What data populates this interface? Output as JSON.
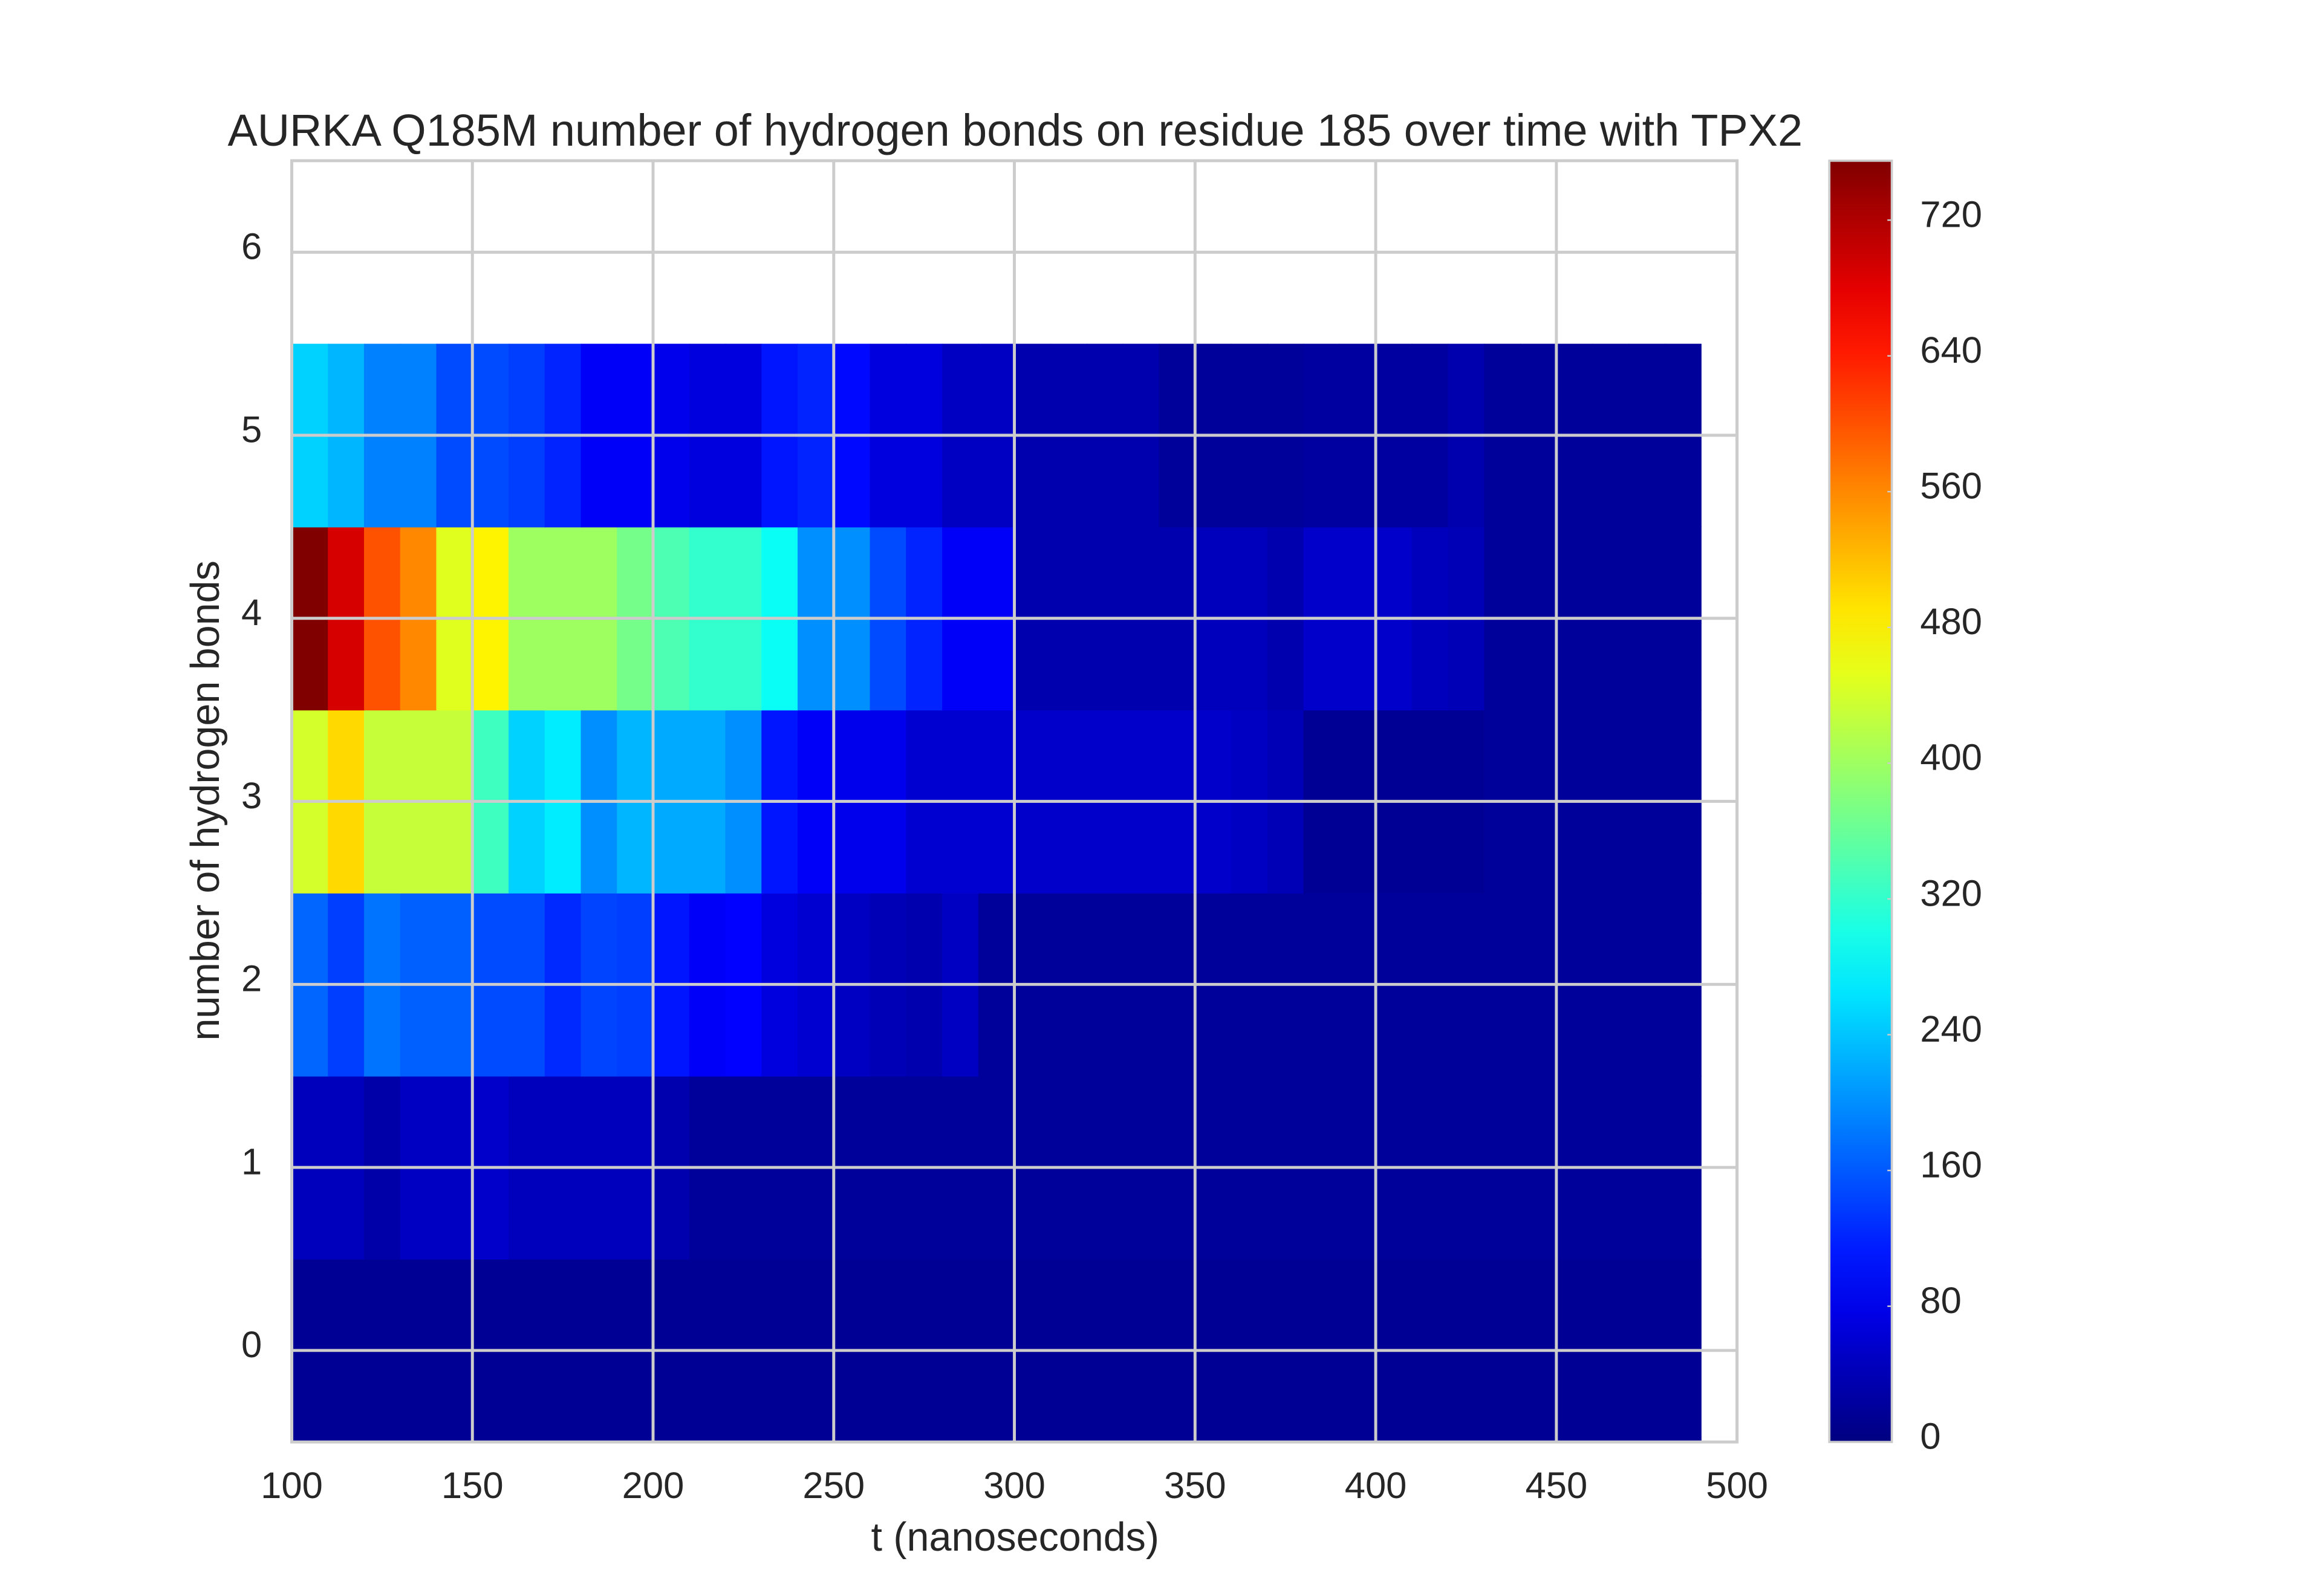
{
  "chart_data": {
    "type": "histogram2d",
    "title": "AURKA Q185M number of hydrogen bonds on residue 185 over time with TPX2",
    "xlabel": "t (nanoseconds)",
    "ylabel": "number of hydrogen bonds",
    "xbins": [
      100,
      110,
      120,
      130,
      140,
      150,
      160,
      170,
      180,
      190,
      200,
      210,
      220,
      230,
      240,
      250,
      260,
      270,
      280,
      290,
      300,
      310,
      320,
      330,
      340,
      350,
      360,
      370,
      380,
      390,
      400,
      410,
      420,
      430,
      440,
      450,
      460,
      470,
      480,
      490
    ],
    "ybins": [
      -0.5,
      0.5,
      1.5,
      2.5,
      3.5,
      4.5,
      5.5
    ],
    "counts": [
      [
        15,
        15,
        15,
        15,
        15,
        15,
        15,
        15,
        15,
        15,
        15,
        15,
        15,
        15,
        15,
        15,
        15,
        15,
        15,
        15,
        15,
        15,
        15,
        15,
        15,
        15,
        15,
        15,
        15,
        15,
        15,
        15,
        15,
        15,
        15,
        15,
        15,
        15,
        15
      ],
      [
        45,
        45,
        30,
        50,
        50,
        55,
        45,
        45,
        45,
        45,
        35,
        20,
        20,
        20,
        20,
        20,
        20,
        20,
        20,
        20,
        20,
        20,
        20,
        20,
        20,
        20,
        20,
        20,
        20,
        20,
        20,
        20,
        20,
        20,
        20,
        20,
        20,
        20,
        20
      ],
      [
        170,
        140,
        180,
        165,
        165,
        150,
        150,
        125,
        145,
        140,
        110,
        90,
        95,
        70,
        60,
        50,
        40,
        35,
        50,
        20,
        20,
        20,
        20,
        20,
        20,
        20,
        20,
        20,
        20,
        20,
        20,
        20,
        20,
        20,
        20,
        20,
        20,
        20,
        20
      ],
      [
        440,
        500,
        430,
        430,
        430,
        330,
        250,
        270,
        200,
        230,
        220,
        220,
        200,
        110,
        90,
        80,
        80,
        60,
        60,
        60,
        55,
        55,
        55,
        55,
        55,
        55,
        50,
        40,
        15,
        15,
        15,
        15,
        15,
        20,
        20,
        20,
        20,
        20,
        20
      ],
      [
        755,
        690,
        600,
        560,
        450,
        480,
        400,
        400,
        400,
        370,
        340,
        320,
        320,
        290,
        200,
        200,
        150,
        120,
        90,
        90,
        35,
        35,
        35,
        35,
        35,
        45,
        45,
        35,
        55,
        55,
        55,
        45,
        40,
        20,
        20,
        20,
        20,
        20,
        20
      ],
      [
        250,
        230,
        190,
        190,
        150,
        150,
        140,
        120,
        90,
        90,
        80,
        70,
        70,
        110,
        120,
        100,
        70,
        70,
        50,
        50,
        35,
        35,
        35,
        35,
        20,
        20,
        20,
        20,
        25,
        25,
        25,
        25,
        35,
        20,
        20,
        20,
        20,
        20,
        20
      ]
    ],
    "colormap": "jet",
    "xlim": [
      100,
      500
    ],
    "xticks": [
      100,
      150,
      200,
      250,
      300,
      350,
      400,
      450,
      500
    ],
    "ylim": [
      -0.5,
      6.5
    ],
    "yticks": [
      0,
      1,
      2,
      3,
      4,
      5,
      6
    ],
    "clim": [
      0,
      755
    ],
    "cticks": [
      0,
      80,
      160,
      240,
      320,
      400,
      480,
      560,
      640,
      720
    ],
    "grid": true
  }
}
